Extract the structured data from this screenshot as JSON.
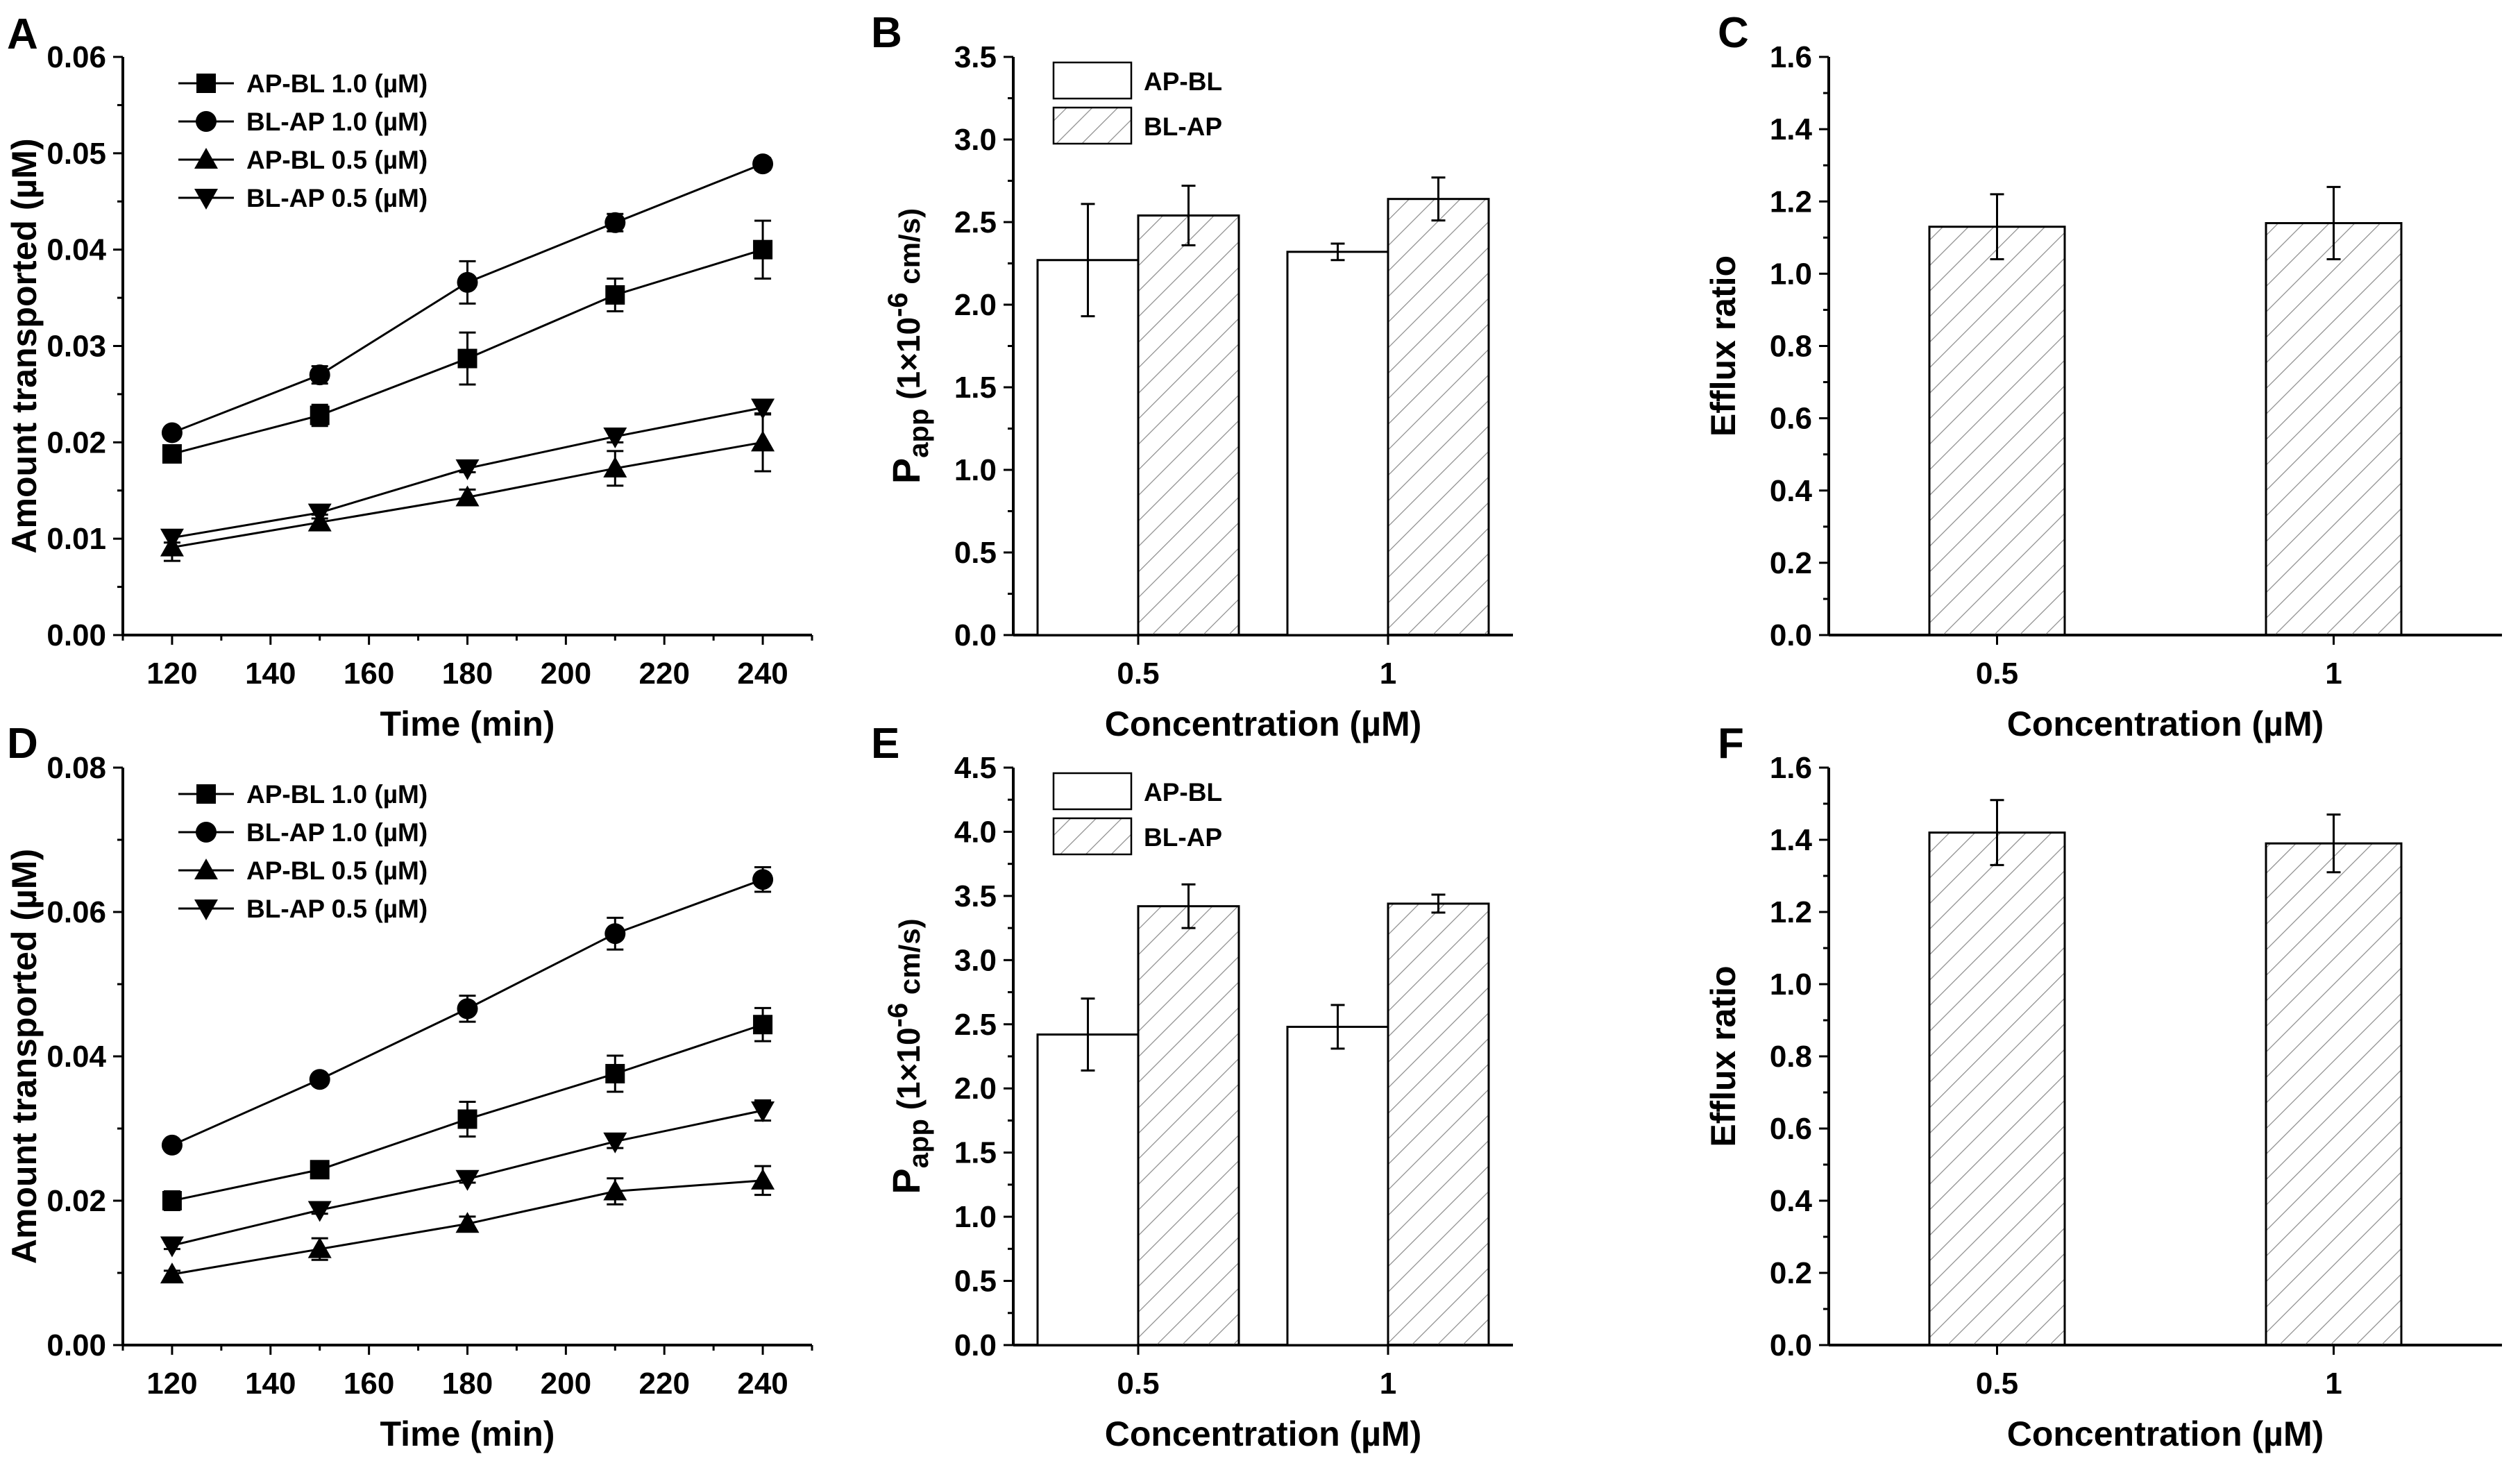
{
  "colors": {
    "ink": "#000000",
    "background": "#ffffff",
    "hatch": "#8a8a8a"
  },
  "chart_data": [
    {
      "panel_label": "A",
      "type": "line",
      "xlabel": "Time (min)",
      "ylabel": "Amount transported (µM)",
      "xlim": [
        110,
        250
      ],
      "ylim": [
        0,
        0.06
      ],
      "xticks": [
        120,
        140,
        160,
        180,
        200,
        220,
        240
      ],
      "xtick_labels": [
        "120",
        "140",
        "160",
        "180",
        "200",
        "220",
        "240"
      ],
      "yticks": [
        0,
        0.01,
        0.02,
        0.03,
        0.04,
        0.05,
        0.06
      ],
      "ytick_labels": [
        "0.00",
        "0.01",
        "0.02",
        "0.03",
        "0.04",
        "0.05",
        "0.06"
      ],
      "x": [
        120,
        150,
        180,
        210,
        240
      ],
      "legend_position": "top-left",
      "series": [
        {
          "name": "AP-BL 1.0 (µM)",
          "marker": "square",
          "values": [
            0.0188,
            0.0228,
            0.0287,
            0.0353,
            0.04
          ],
          "errors": [
            0.0005,
            0.0011,
            0.0027,
            0.0017,
            0.003
          ]
        },
        {
          "name": "BL-AP 1.0 (µM)",
          "marker": "circle",
          "values": [
            0.021,
            0.027,
            0.0366,
            0.0428,
            0.0489
          ],
          "errors": [
            0.0005,
            0.0009,
            0.0022,
            0.0009,
            0.0006
          ]
        },
        {
          "name": "AP-BL 0.5 (µM)",
          "marker": "triangle-up",
          "values": [
            0.0091,
            0.0117,
            0.0143,
            0.0173,
            0.02
          ],
          "errors": [
            0.0014,
            0.0008,
            0.0008,
            0.0018,
            0.003
          ]
        },
        {
          "name": "BL-AP 0.5 (µM)",
          "marker": "triangle-down",
          "values": [
            0.0101,
            0.0127,
            0.0173,
            0.0206,
            0.0236
          ],
          "errors": [
            0.0005,
            0.0006,
            0.0004,
            0.0006,
            0.0007
          ]
        }
      ]
    },
    {
      "panel_label": "B",
      "type": "bar",
      "xlabel": "Concentration (µM)",
      "ylabel": {
        "main": "P",
        "sub": "app",
        "rest": " (1×10",
        "sup": "-6",
        "unit": " cm/s)"
      },
      "ylim": [
        0,
        3.5
      ],
      "yticks": [
        0,
        0.5,
        1,
        1.5,
        2,
        2.5,
        3,
        3.5
      ],
      "ytick_labels": [
        "0.0",
        "0.5",
        "1.0",
        "1.5",
        "2.0",
        "2.5",
        "3.0",
        "3.5"
      ],
      "categories": [
        "0.5",
        "1"
      ],
      "legend_position": "top-left",
      "series": [
        {
          "name": "AP-BL",
          "pattern": "open",
          "values": [
            2.27,
            2.32
          ],
          "errors": [
            0.34,
            0.05
          ]
        },
        {
          "name": "BL-AP",
          "pattern": "hatched",
          "values": [
            2.54,
            2.64
          ],
          "errors": [
            0.18,
            0.13
          ]
        }
      ]
    },
    {
      "panel_label": "C",
      "type": "bar",
      "xlabel": "Concentration (µM)",
      "ylabel": "Efflux ratio",
      "ylim": [
        0,
        1.6
      ],
      "yticks": [
        0,
        0.2,
        0.4,
        0.6,
        0.8,
        1,
        1.2,
        1.4,
        1.6
      ],
      "ytick_labels": [
        "0.0",
        "0.2",
        "0.4",
        "0.6",
        "0.8",
        "1.0",
        "1.2",
        "1.4",
        "1.6"
      ],
      "categories": [
        "0.5",
        "1"
      ],
      "series": [
        {
          "name": "Efflux ratio",
          "pattern": "hatched",
          "values": [
            1.13,
            1.14
          ],
          "errors": [
            0.09,
            0.1
          ]
        }
      ]
    },
    {
      "panel_label": "D",
      "type": "line",
      "xlabel": "Time (min)",
      "ylabel": "Amount transported (µM)",
      "xlim": [
        110,
        250
      ],
      "ylim": [
        0,
        0.08
      ],
      "xticks": [
        120,
        140,
        160,
        180,
        200,
        220,
        240
      ],
      "xtick_labels": [
        "120",
        "140",
        "160",
        "180",
        "200",
        "220",
        "240"
      ],
      "yticks": [
        0,
        0.02,
        0.04,
        0.06,
        0.08
      ],
      "ytick_labels": [
        "0.00",
        "0.02",
        "0.04",
        "0.06",
        "0.08"
      ],
      "x": [
        120,
        150,
        180,
        210,
        240
      ],
      "legend_position": "top-left",
      "series": [
        {
          "name": "AP-BL 1.0 (µM)",
          "marker": "square",
          "values": [
            0.02,
            0.0243,
            0.0313,
            0.0376,
            0.0444
          ],
          "errors": [
            0.0013,
            0.0008,
            0.0024,
            0.0025,
            0.0023
          ]
        },
        {
          "name": "BL-AP 1.0 (µM)",
          "marker": "circle",
          "values": [
            0.0277,
            0.0368,
            0.0466,
            0.057,
            0.0645
          ],
          "errors": [
            0.0005,
            0.0005,
            0.0018,
            0.0022,
            0.0017
          ]
        },
        {
          "name": "AP-BL 0.5 (µM)",
          "marker": "triangle-up",
          "values": [
            0.0098,
            0.0133,
            0.0168,
            0.0213,
            0.0228
          ],
          "errors": [
            0.0005,
            0.0015,
            0.001,
            0.0018,
            0.002
          ]
        },
        {
          "name": "BL-AP 0.5 (µM)",
          "marker": "triangle-down",
          "values": [
            0.0138,
            0.0187,
            0.023,
            0.0282,
            0.0325
          ],
          "errors": [
            0.0005,
            0.0005,
            0.0005,
            0.0009,
            0.0014
          ]
        }
      ]
    },
    {
      "panel_label": "E",
      "type": "bar",
      "xlabel": "Concentration (µM)",
      "ylabel": {
        "main": "P",
        "sub": "app",
        "rest": " (1×10",
        "sup": "-6",
        "unit": " cm/s)"
      },
      "ylim": [
        0,
        4.5
      ],
      "yticks": [
        0,
        0.5,
        1,
        1.5,
        2,
        2.5,
        3,
        3.5,
        4,
        4.5
      ],
      "ytick_labels": [
        "0.0",
        "0.5",
        "1.0",
        "1.5",
        "2.0",
        "2.5",
        "3.0",
        "3.5",
        "4.0",
        "4.5"
      ],
      "categories": [
        "0.5",
        "1"
      ],
      "legend_position": "top-left",
      "series": [
        {
          "name": "AP-BL",
          "pattern": "open",
          "values": [
            2.42,
            2.48
          ],
          "errors": [
            0.28,
            0.17
          ]
        },
        {
          "name": "BL-AP",
          "pattern": "hatched",
          "values": [
            3.42,
            3.44
          ],
          "errors": [
            0.17,
            0.07
          ]
        }
      ]
    },
    {
      "panel_label": "F",
      "type": "bar",
      "xlabel": "Concentration (µM)",
      "ylabel": "Efflux ratio",
      "ylim": [
        0,
        1.6
      ],
      "yticks": [
        0,
        0.2,
        0.4,
        0.6,
        0.8,
        1,
        1.2,
        1.4,
        1.6
      ],
      "ytick_labels": [
        "0.0",
        "0.2",
        "0.4",
        "0.6",
        "0.8",
        "1.0",
        "1.2",
        "1.4",
        "1.6"
      ],
      "categories": [
        "0.5",
        "1"
      ],
      "series": [
        {
          "name": "Efflux ratio",
          "pattern": "hatched",
          "values": [
            1.42,
            1.39
          ],
          "errors": [
            0.09,
            0.08
          ]
        }
      ]
    }
  ]
}
